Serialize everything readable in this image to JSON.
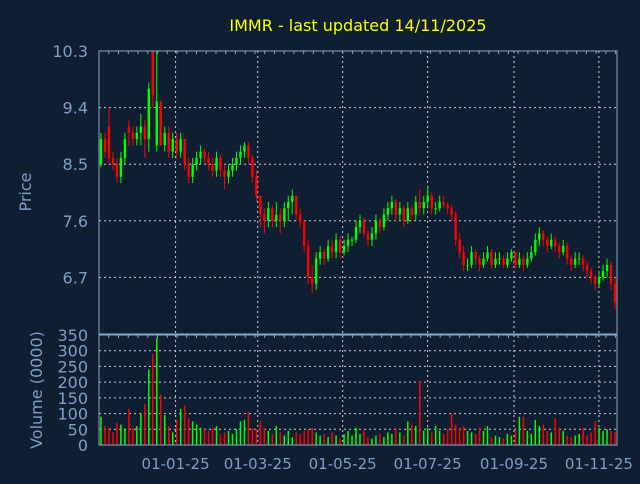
{
  "chart_data": {
    "type": "candlestick",
    "title": "IMMR - last updated 14/11/2025",
    "colors": {
      "background": "#0f1e30",
      "up": "#00ff00",
      "down": "#ff0000",
      "axis": "#8aa8cc",
      "title": "#ffff00",
      "grid": "#c8d0dc"
    },
    "price_panel": {
      "ylabel": "Price",
      "ylim": [
        5.8,
        10.3
      ],
      "yticks": [
        "10.3",
        "9.4",
        "8.5",
        "7.6",
        "6.7"
      ],
      "grid": true
    },
    "volume_panel": {
      "ylabel": "Volume (0000)",
      "ylim": [
        0,
        350
      ],
      "yticks": [
        "350",
        "300",
        "250",
        "200",
        "150",
        "100",
        "50",
        "0"
      ],
      "grid": true
    },
    "xlim": [
      "2024-11-07",
      "2025-11-14"
    ],
    "xticks": [
      {
        "date": "2025-01-01",
        "label": "01-01-25"
      },
      {
        "date": "2025-03-01",
        "label": "01-03-25"
      },
      {
        "date": "2025-05-01",
        "label": "01-05-25"
      },
      {
        "date": "2025-07-01",
        "label": "01-07-25"
      },
      {
        "date": "2025-09-01",
        "label": "01-09-25"
      },
      {
        "date": "2025-11-01",
        "label": "01-11-25"
      }
    ],
    "candle_fields": [
      "open",
      "high",
      "low",
      "close",
      "volume"
    ],
    "candles": [
      [
        8.5,
        9.0,
        8.45,
        8.9,
        90
      ],
      [
        8.9,
        9.0,
        8.6,
        8.7,
        60
      ],
      [
        9.1,
        9.4,
        8.5,
        8.6,
        55
      ],
      [
        8.6,
        8.7,
        8.4,
        8.5,
        40
      ],
      [
        8.5,
        8.6,
        8.2,
        8.3,
        70
      ],
      [
        8.3,
        8.7,
        8.2,
        8.6,
        65
      ],
      [
        8.6,
        9.0,
        8.5,
        8.9,
        50
      ],
      [
        9.1,
        9.2,
        8.8,
        9.0,
        115
      ],
      [
        9.0,
        9.1,
        8.8,
        8.9,
        55
      ],
      [
        8.9,
        9.1,
        8.8,
        9.0,
        60
      ],
      [
        9.0,
        9.3,
        8.8,
        9.1,
        100
      ],
      [
        9.1,
        9.2,
        8.6,
        8.9,
        130
      ],
      [
        8.9,
        9.8,
        8.7,
        9.7,
        240
      ],
      [
        10.3,
        10.3,
        9.4,
        9.6,
        290
      ],
      [
        8.8,
        10.3,
        8.7,
        9.5,
        340
      ],
      [
        9.5,
        9.5,
        8.8,
        8.8,
        160
      ],
      [
        8.8,
        9.1,
        8.7,
        9.0,
        95
      ],
      [
        9.0,
        9.1,
        8.6,
        8.7,
        60
      ],
      [
        8.7,
        9.0,
        8.6,
        8.9,
        40
      ],
      [
        8.9,
        9.0,
        8.6,
        8.7,
        80
      ],
      [
        8.7,
        9.0,
        8.6,
        8.9,
        115
      ],
      [
        8.9,
        8.9,
        8.4,
        8.5,
        125
      ],
      [
        8.5,
        8.6,
        8.2,
        8.3,
        85
      ],
      [
        8.3,
        8.6,
        8.2,
        8.5,
        75
      ],
      [
        8.5,
        8.7,
        8.4,
        8.6,
        65
      ],
      [
        8.6,
        8.8,
        8.5,
        8.7,
        55
      ],
      [
        8.7,
        8.75,
        8.5,
        8.6,
        50
      ],
      [
        8.6,
        8.7,
        8.4,
        8.5,
        45
      ],
      [
        8.5,
        8.6,
        8.3,
        8.4,
        55
      ],
      [
        8.4,
        8.7,
        8.3,
        8.6,
        60
      ],
      [
        8.6,
        8.65,
        8.3,
        8.4,
        35
      ],
      [
        8.4,
        8.5,
        8.1,
        8.3,
        40
      ],
      [
        8.3,
        8.5,
        8.2,
        8.4,
        45
      ],
      [
        8.4,
        8.6,
        8.3,
        8.5,
        35
      ],
      [
        8.5,
        8.7,
        8.4,
        8.6,
        50
      ],
      [
        8.6,
        8.8,
        8.5,
        8.7,
        75
      ],
      [
        8.7,
        8.85,
        8.6,
        8.8,
        80
      ],
      [
        8.8,
        8.85,
        8.5,
        8.6,
        105
      ],
      [
        8.6,
        8.65,
        8.2,
        8.3,
        55
      ],
      [
        8.3,
        8.4,
        7.9,
        8.0,
        50
      ],
      [
        8.0,
        8.0,
        7.5,
        7.7,
        75
      ],
      [
        7.7,
        7.8,
        7.4,
        7.6,
        55
      ],
      [
        7.6,
        7.9,
        7.5,
        7.8,
        45
      ],
      [
        7.8,
        7.85,
        7.5,
        7.6,
        35
      ],
      [
        7.6,
        7.9,
        7.5,
        7.7,
        60
      ],
      [
        7.7,
        7.8,
        7.4,
        7.6,
        40
      ],
      [
        7.6,
        7.9,
        7.5,
        7.8,
        30
      ],
      [
        7.8,
        8.0,
        7.6,
        7.9,
        45
      ],
      [
        7.9,
        8.1,
        7.7,
        8.0,
        25
      ],
      [
        8.0,
        8.0,
        7.6,
        7.7,
        40
      ],
      [
        7.7,
        7.8,
        7.5,
        7.6,
        35
      ],
      [
        7.6,
        7.6,
        7.1,
        7.2,
        45
      ],
      [
        7.2,
        7.3,
        6.6,
        6.7,
        50
      ],
      [
        6.7,
        6.9,
        6.45,
        6.6,
        55
      ],
      [
        6.6,
        7.1,
        6.5,
        7.0,
        40
      ],
      [
        7.0,
        7.2,
        6.9,
        7.1,
        30
      ],
      [
        7.1,
        7.15,
        6.9,
        7.0,
        35
      ],
      [
        7.0,
        7.3,
        6.95,
        7.2,
        25
      ],
      [
        7.2,
        7.3,
        7.0,
        7.1,
        40
      ],
      [
        7.1,
        7.4,
        7.0,
        7.3,
        30
      ],
      [
        7.3,
        7.35,
        7.0,
        7.1,
        20
      ],
      [
        7.1,
        7.3,
        7.05,
        7.2,
        35
      ],
      [
        7.2,
        7.4,
        7.1,
        7.3,
        45
      ],
      [
        7.3,
        7.35,
        7.2,
        7.3,
        30
      ],
      [
        7.3,
        7.6,
        7.25,
        7.5,
        55
      ],
      [
        7.5,
        7.7,
        7.4,
        7.6,
        35
      ],
      [
        7.6,
        7.65,
        7.35,
        7.4,
        45
      ],
      [
        7.4,
        7.45,
        7.2,
        7.3,
        25
      ],
      [
        7.3,
        7.5,
        7.2,
        7.4,
        20
      ],
      [
        7.4,
        7.7,
        7.3,
        7.6,
        30
      ],
      [
        7.6,
        7.65,
        7.4,
        7.5,
        35
      ],
      [
        7.5,
        7.8,
        7.45,
        7.7,
        25
      ],
      [
        7.7,
        7.9,
        7.6,
        7.8,
        40
      ],
      [
        7.8,
        8.0,
        7.7,
        7.9,
        35
      ],
      [
        7.9,
        7.95,
        7.6,
        7.7,
        55
      ],
      [
        7.7,
        7.9,
        7.6,
        7.8,
        40
      ],
      [
        7.8,
        7.85,
        7.5,
        7.6,
        30
      ],
      [
        7.6,
        7.9,
        7.55,
        7.8,
        75
      ],
      [
        7.8,
        7.85,
        7.6,
        7.7,
        65
      ],
      [
        7.7,
        8.0,
        7.6,
        7.9,
        60
      ],
      [
        7.9,
        8.1,
        7.7,
        7.8,
        205
      ],
      [
        7.8,
        8.0,
        7.7,
        7.9,
        45
      ],
      [
        7.9,
        8.15,
        7.8,
        8.0,
        55
      ],
      [
        8.0,
        8.05,
        7.7,
        7.8,
        40
      ],
      [
        7.8,
        7.9,
        7.7,
        7.8,
        60
      ],
      [
        7.8,
        8.0,
        7.75,
        7.9,
        45
      ],
      [
        7.9,
        8.0,
        7.8,
        7.85,
        35
      ],
      [
        7.85,
        7.9,
        7.7,
        7.8,
        50
      ],
      [
        7.8,
        7.85,
        7.6,
        7.7,
        100
      ],
      [
        7.7,
        7.75,
        7.2,
        7.3,
        65
      ],
      [
        7.3,
        7.4,
        7.0,
        7.1,
        55
      ],
      [
        7.1,
        7.2,
        6.8,
        6.9,
        60
      ],
      [
        6.9,
        7.0,
        6.8,
        6.9,
        45
      ],
      [
        6.9,
        7.2,
        6.85,
        7.1,
        40
      ],
      [
        7.1,
        7.15,
        6.9,
        7.0,
        35
      ],
      [
        7.0,
        7.05,
        6.8,
        6.9,
        55
      ],
      [
        6.9,
        7.1,
        6.85,
        7.0,
        45
      ],
      [
        7.0,
        7.2,
        6.95,
        7.1,
        60
      ],
      [
        7.1,
        7.15,
        6.85,
        6.9,
        25
      ],
      [
        6.9,
        7.1,
        6.85,
        7.0,
        30
      ],
      [
        7.0,
        7.1,
        6.9,
        7.0,
        25
      ],
      [
        7.0,
        7.05,
        6.85,
        6.9,
        20
      ],
      [
        6.9,
        7.1,
        6.85,
        7.0,
        35
      ],
      [
        7.0,
        7.15,
        6.95,
        7.1,
        30
      ],
      [
        7.1,
        7.1,
        6.85,
        6.9,
        45
      ],
      [
        6.9,
        7.1,
        6.85,
        7.0,
        90
      ],
      [
        7.0,
        7.05,
        6.8,
        6.9,
        90
      ],
      [
        6.9,
        7.1,
        6.85,
        7.0,
        45
      ],
      [
        7.0,
        7.2,
        6.95,
        7.1,
        35
      ],
      [
        7.1,
        7.4,
        7.05,
        7.3,
        80
      ],
      [
        7.3,
        7.5,
        7.2,
        7.4,
        60
      ],
      [
        7.4,
        7.45,
        7.2,
        7.3,
        65
      ],
      [
        7.3,
        7.35,
        7.1,
        7.2,
        45
      ],
      [
        7.2,
        7.4,
        7.15,
        7.3,
        40
      ],
      [
        7.3,
        7.35,
        7.1,
        7.2,
        85
      ],
      [
        7.2,
        7.25,
        7.0,
        7.1,
        55
      ],
      [
        7.1,
        7.3,
        7.05,
        7.2,
        45
      ],
      [
        7.2,
        7.25,
        6.9,
        7.0,
        30
      ],
      [
        7.0,
        7.05,
        6.8,
        6.9,
        25
      ],
      [
        6.9,
        7.1,
        6.85,
        7.0,
        30
      ],
      [
        7.0,
        7.1,
        6.9,
        7.0,
        35
      ],
      [
        7.0,
        7.05,
        6.8,
        6.9,
        55
      ],
      [
        6.9,
        6.95,
        6.7,
        6.8,
        30
      ],
      [
        6.8,
        6.85,
        6.6,
        6.7,
        40
      ],
      [
        6.7,
        6.75,
        6.5,
        6.6,
        75
      ],
      [
        6.6,
        6.8,
        6.55,
        6.7,
        55
      ],
      [
        6.7,
        6.9,
        6.65,
        6.8,
        45
      ],
      [
        6.8,
        7.0,
        6.7,
        6.9,
        50
      ],
      [
        6.9,
        6.95,
        6.5,
        6.6,
        45
      ],
      [
        6.6,
        6.7,
        6.2,
        6.3,
        40
      ]
    ]
  }
}
